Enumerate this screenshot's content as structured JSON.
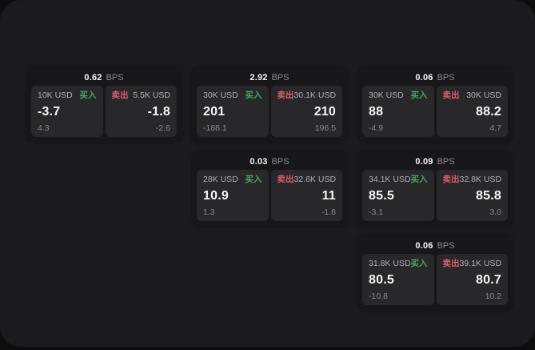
{
  "labels": {
    "bps_unit": "BPS",
    "buy": "买入",
    "sell": "卖出"
  },
  "colors": {
    "background": "#0d0d0e",
    "surface": "#1b1b1d",
    "card": "#171719",
    "panel": "#28282b",
    "text_primary": "#f5f5f6",
    "text_muted": "#8a8a8f",
    "text_label": "#aeaeb3",
    "buy_green": "#46a860",
    "sell_red": "#de5c6e"
  },
  "cards": [
    {
      "bps": "0.62",
      "buy": {
        "size": "10K USD",
        "price": "-3.7",
        "change": "4.3"
      },
      "sell": {
        "size": "5.5K USD",
        "price": "-1.8",
        "change": "-2.6"
      }
    },
    {
      "bps": "2.92",
      "buy": {
        "size": "30K USD",
        "price": "201",
        "change": "-188.1"
      },
      "sell": {
        "size": "30.1K USD",
        "price": "210",
        "change": "196.5"
      }
    },
    {
      "bps": "0.06",
      "buy": {
        "size": "30K USD",
        "price": "88",
        "change": "-4.9"
      },
      "sell": {
        "size": "30K USD",
        "price": "88.2",
        "change": "4.7"
      }
    },
    {
      "bps": "0.03",
      "buy": {
        "size": "28K USD",
        "price": "10.9",
        "change": "1.3"
      },
      "sell": {
        "size": "32.6K USD",
        "price": "11",
        "change": "-1.8"
      }
    },
    {
      "bps": "0.09",
      "buy": {
        "size": "34.1K USD",
        "price": "85.5",
        "change": "-3.1"
      },
      "sell": {
        "size": "32.8K USD",
        "price": "85.8",
        "change": "3.0"
      }
    },
    {
      "bps": "0.06",
      "buy": {
        "size": "31.8K USD",
        "price": "80.5",
        "change": "-10.8"
      },
      "sell": {
        "size": "39.1K USD",
        "price": "80.7",
        "change": "10.2"
      }
    }
  ]
}
